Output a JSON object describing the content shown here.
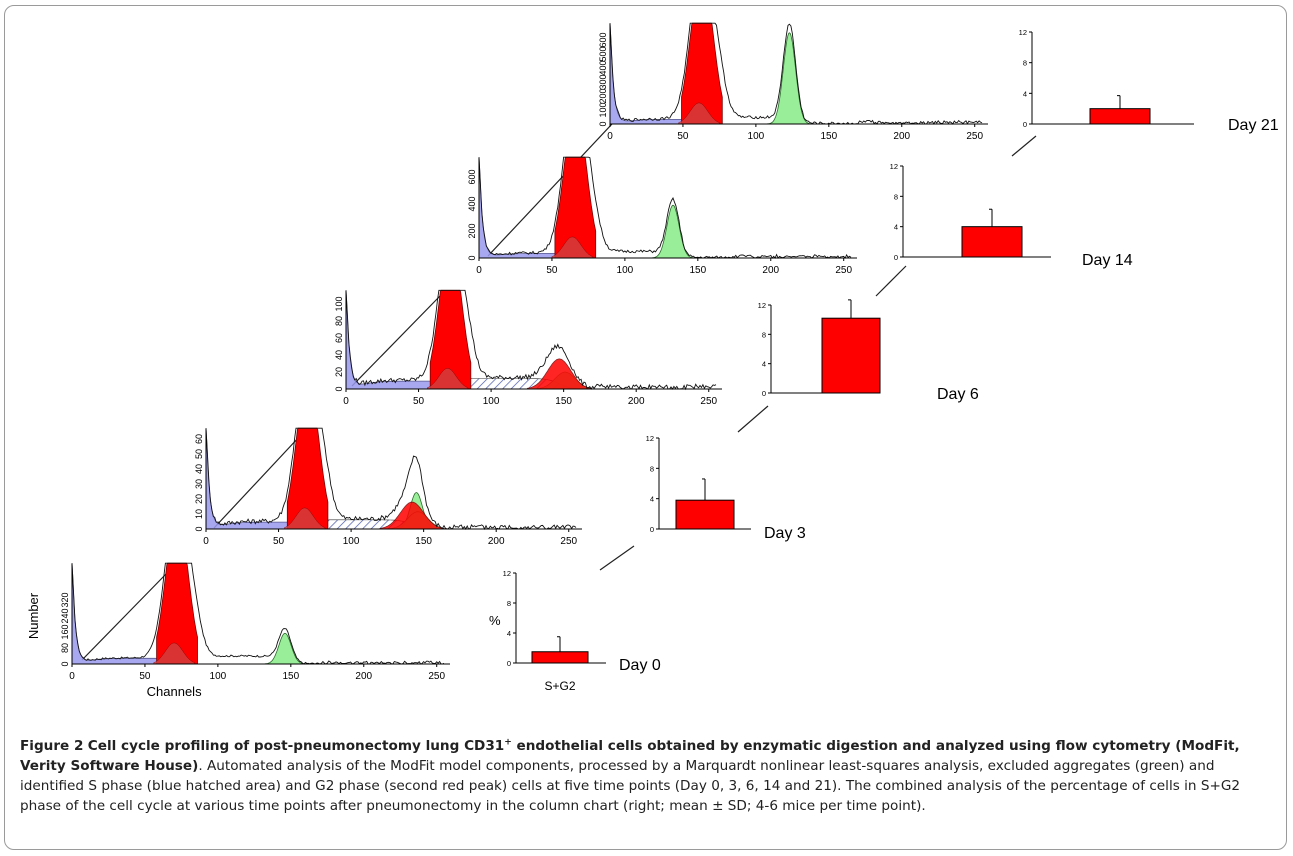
{
  "figure": {
    "caption_label": "Figure 2",
    "caption_title_a": "Cell cycle profiling of post-pneumonectomy lung CD31",
    "caption_title_sup": "+",
    "caption_title_b": " endothelial cells obtained by enzymatic digestion and analyzed using flow cytometry (ModFit, Verity Software House)",
    "caption_body": ". Automated analysis of the ModFit model components, processed by a Marquardt nonlinear least-squares analysis, excluded aggregates (green) and identified S phase (blue hatched area) and G2 phase (second red peak) cells at five time points (Day 0, 3, 6, 14 and 21). The combined analysis of the percentage of cells in S+G2 phase of the cell cycle at various time points after pneumonectomy in the column chart (right; mean ± SD; 4-6 mice per time point)."
  },
  "colors": {
    "g1_red": "#ff0000",
    "debris_blue": "#9999ee",
    "aggregate_green": "#99ee99",
    "hatch_blue": "#4455aa",
    "bar_red": "#ff0000"
  },
  "chart_data": [
    {
      "type": "area",
      "panel": "histogram-day0",
      "xlabel": "Channels",
      "ylabel": "Number",
      "xlim": [
        0,
        255
      ],
      "ylim": [
        0,
        380
      ],
      "x_ticks": [
        "0",
        "50",
        "100",
        "150",
        "200",
        "250"
      ],
      "y_ticks": [
        "0",
        "80",
        "160",
        "240",
        "320"
      ],
      "peaks": {
        "g1": 72,
        "g2": 0,
        "aggregate": 146
      }
    },
    {
      "type": "area",
      "panel": "histogram-day3",
      "xlabel": "",
      "ylabel": "",
      "xlim": [
        0,
        255
      ],
      "ylim": [
        0,
        65
      ],
      "x_ticks": [
        "0",
        "50",
        "100",
        "150",
        "200",
        "250"
      ],
      "y_ticks": [
        "0",
        "10",
        "20",
        "30",
        "40",
        "50",
        "60"
      ],
      "peaks": {
        "g1": 70,
        "g2": 142,
        "aggregate": 145
      }
    },
    {
      "type": "area",
      "panel": "histogram-day6",
      "xlabel": "",
      "ylabel": "",
      "xlim": [
        0,
        255
      ],
      "ylim": [
        0,
        115
      ],
      "x_ticks": [
        "0",
        "50",
        "100",
        "150",
        "200",
        "250"
      ],
      "y_ticks": [
        "0",
        "20",
        "40",
        "60",
        "80",
        "100"
      ],
      "peaks": {
        "g1": 72,
        "g2": 147,
        "aggregate": 0
      }
    },
    {
      "type": "area",
      "panel": "histogram-day14",
      "xlabel": "",
      "ylabel": "",
      "xlim": [
        0,
        255
      ],
      "ylim": [
        0,
        720
      ],
      "x_ticks": [
        "0",
        "50",
        "100",
        "150",
        "200",
        "250"
      ],
      "y_ticks": [
        "0",
        "200",
        "400",
        "600"
      ],
      "peaks": {
        "g1": 66,
        "g2": 0,
        "aggregate": 133
      }
    },
    {
      "type": "area",
      "panel": "histogram-day21",
      "xlabel": "",
      "ylabel": "",
      "xlim": [
        0,
        255
      ],
      "ylim": [
        0,
        700
      ],
      "x_ticks": [
        "0",
        "50",
        "100",
        "150",
        "200",
        "250"
      ],
      "y_ticks": [
        "0",
        "100",
        "200",
        "300",
        "400",
        "500",
        "600"
      ],
      "peaks": {
        "g1": 63,
        "g2": 0,
        "aggregate": 123
      }
    },
    {
      "type": "bar",
      "panel": "bar-day0",
      "categories": [
        "S+G2"
      ],
      "values": [
        1.5
      ],
      "errors": [
        2.0
      ],
      "ylim": [
        0,
        12
      ],
      "y_ticks": [
        "0",
        "4",
        "8",
        "12"
      ],
      "ylabel": "%",
      "label": "Day 0"
    },
    {
      "type": "bar",
      "panel": "bar-day3",
      "categories": [
        ""
      ],
      "values": [
        3.8
      ],
      "errors": [
        2.8
      ],
      "ylim": [
        0,
        12
      ],
      "y_ticks": [
        "0",
        "4",
        "8",
        "12"
      ],
      "ylabel": "",
      "label": "Day 3"
    },
    {
      "type": "bar",
      "panel": "bar-day6",
      "categories": [
        ""
      ],
      "values": [
        10.2
      ],
      "errors": [
        2.5
      ],
      "ylim": [
        0,
        12
      ],
      "y_ticks": [
        "0",
        "4",
        "8",
        "12"
      ],
      "ylabel": "",
      "label": "Day 6"
    },
    {
      "type": "bar",
      "panel": "bar-day14",
      "categories": [
        ""
      ],
      "values": [
        4.0
      ],
      "errors": [
        2.3
      ],
      "ylim": [
        0,
        12
      ],
      "y_ticks": [
        "0",
        "4",
        "8",
        "12"
      ],
      "ylabel": "",
      "label": "Day 14"
    },
    {
      "type": "bar",
      "panel": "bar-day21",
      "categories": [
        ""
      ],
      "values": [
        2.0
      ],
      "errors": [
        1.7
      ],
      "ylim": [
        0,
        12
      ],
      "y_ticks": [
        "0",
        "4",
        "8",
        "12"
      ],
      "ylabel": "",
      "label": "Day 21"
    }
  ]
}
